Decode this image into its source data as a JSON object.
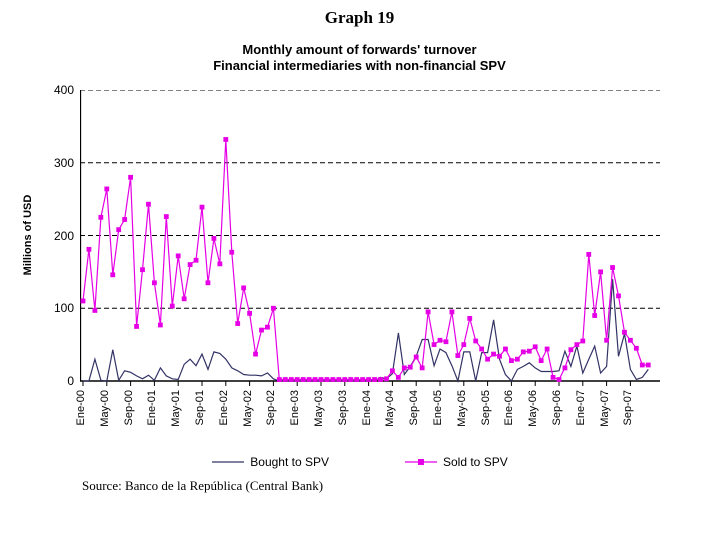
{
  "header": {
    "title": "Graph 19"
  },
  "chart_data": {
    "type": "line",
    "title": "Monthly amount of forwards' turnover",
    "subtitle": "Financial intermediaries with non-financial SPV",
    "ylabel": "Millions of USD",
    "ylim": [
      0,
      400
    ],
    "yticks": [
      0,
      100,
      200,
      300,
      400
    ],
    "grid": "dashed-horizontal",
    "legend_position": "bottom",
    "n_months": 96,
    "x_start": "Ene-00",
    "x_end": "Dic-07",
    "x_tick_every": 4,
    "x_tick_labels": [
      "Ene-00",
      "May-00",
      "Sep-00",
      "Ene-01",
      "May-01",
      "Sep-01",
      "Ene-02",
      "May-02",
      "Sep-02",
      "Ene-03",
      "May-03",
      "Sep-03",
      "Ene-04",
      "May-04",
      "Sep-04",
      "Ene-05",
      "May-05",
      "Sep-05",
      "Ene-06",
      "May-06",
      "Sep-06",
      "Ene-07",
      "May-07",
      "Sep-07"
    ],
    "series": [
      {
        "name": "Bought to SPV",
        "color": "#333366",
        "marker": "none",
        "values": [
          0,
          0,
          30,
          1,
          0,
          43,
          1,
          14,
          12,
          7,
          3,
          8,
          1,
          18,
          7,
          3,
          2,
          23,
          30,
          21,
          37,
          16,
          40,
          38,
          30,
          18,
          14,
          9,
          8,
          8,
          7,
          11,
          3,
          0,
          0,
          0,
          0,
          0,
          0,
          0,
          0,
          0,
          0,
          0,
          0,
          0,
          0,
          0,
          0,
          0,
          5,
          3,
          10,
          66,
          9,
          20,
          34,
          57,
          57,
          21,
          44,
          39,
          21,
          0,
          40,
          40,
          0,
          39,
          39,
          84,
          30,
          9,
          0,
          16,
          20,
          25,
          18,
          13,
          13,
          13,
          14,
          41,
          20,
          48,
          11,
          30,
          48,
          11,
          20,
          140,
          34,
          65,
          16,
          2,
          5,
          16
        ]
      },
      {
        "name": "Sold to SPV",
        "color": "#E600E6",
        "marker": "square",
        "values": [
          110,
          181,
          97,
          225,
          264,
          146,
          208,
          222,
          280,
          75,
          153,
          243,
          135,
          77,
          226,
          103,
          172,
          113,
          160,
          166,
          239,
          135,
          196,
          161,
          332,
          177,
          79,
          128,
          93,
          37,
          70,
          74,
          100,
          2,
          2,
          2,
          2,
          2,
          2,
          2,
          2,
          2,
          2,
          2,
          2,
          2,
          2,
          2,
          2,
          2,
          2,
          3,
          14,
          5,
          18,
          19,
          33,
          18,
          95,
          50,
          56,
          54,
          95,
          35,
          50,
          86,
          55,
          44,
          30,
          37,
          34,
          44,
          28,
          30,
          40,
          41,
          47,
          28,
          44,
          5,
          2,
          18,
          43,
          50,
          55,
          174,
          90,
          150,
          56,
          156,
          117,
          67,
          56,
          45,
          22,
          22
        ]
      }
    ]
  },
  "source": "Source: Banco de la República (Central Bank)"
}
